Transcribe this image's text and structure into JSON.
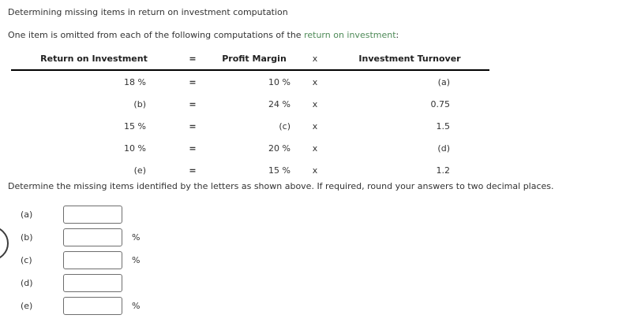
{
  "page": {
    "title": "Determining missing items in return on investment computation",
    "intro_prefix": "One item is omitted from each of the following computations of the ",
    "intro_link": "return on investment",
    "intro_suffix": ":",
    "instruction": "Determine the missing items identified by the letters as shown above. If required, round your answers to two decimal places."
  },
  "table": {
    "headers": [
      "Return on Investment",
      "=",
      "Profit Margin",
      "x",
      "Investment Turnover"
    ],
    "rows": [
      [
        "18 %",
        "=",
        "10 %",
        "x",
        "(a)"
      ],
      [
        "(b)",
        "=",
        "24 %",
        "x",
        "0.75"
      ],
      [
        "15 %",
        "=",
        "(c)",
        "x",
        "1.5"
      ],
      [
        "10 %",
        "=",
        "20 %",
        "x",
        "(d)"
      ],
      [
        "(e)",
        "=",
        "15 %",
        "x",
        "1.2"
      ]
    ]
  },
  "answers": [
    {
      "label": "(a)",
      "value": "",
      "suffix": ""
    },
    {
      "label": "(b)",
      "value": "",
      "suffix": "%"
    },
    {
      "label": "(c)",
      "value": "",
      "suffix": "%"
    },
    {
      "label": "(d)",
      "value": "",
      "suffix": ""
    },
    {
      "label": "(e)",
      "value": "",
      "suffix": "%"
    }
  ],
  "colors": {
    "link_green": "#4e8a57",
    "text": "#333333",
    "input_border": "#6e6e6e",
    "table_rule": "#000000"
  }
}
